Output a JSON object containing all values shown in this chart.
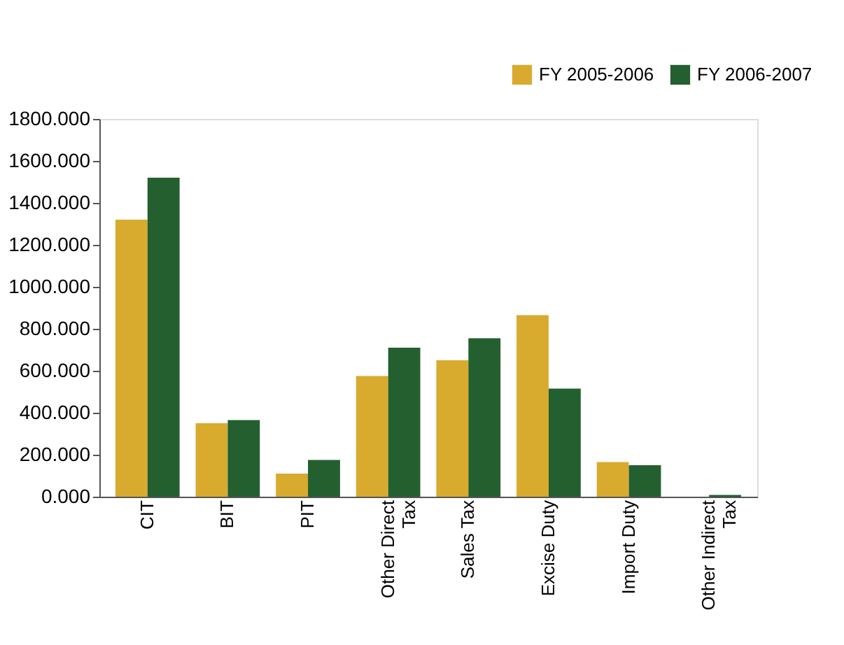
{
  "chart_data": {
    "type": "bar",
    "categories": [
      "CIT",
      "BIT",
      "PIT",
      "Other Direct Tax",
      "Sales Tax",
      "Excise Duty",
      "Import Duty",
      "Other Indirect Tax"
    ],
    "series": [
      {
        "name": "FY 2005-2006",
        "color": "#d8ab2e",
        "values": [
          1320,
          350,
          110,
          575,
          650,
          865,
          165,
          0
        ]
      },
      {
        "name": "FY 2006-2007",
        "color": "#245f30",
        "values": [
          1520,
          365,
          175,
          710,
          755,
          515,
          150,
          8
        ]
      }
    ],
    "ylim": [
      0,
      1800
    ],
    "yticks": [
      {
        "value": 0,
        "label": "0.000"
      },
      {
        "value": 200,
        "label": "200.000"
      },
      {
        "value": 400,
        "label": "400.000"
      },
      {
        "value": 600,
        "label": "600.000"
      },
      {
        "value": 800,
        "label": "800.000"
      },
      {
        "value": 1000,
        "label": "1000.000"
      },
      {
        "value": 1200,
        "label": "1200.000"
      },
      {
        "value": 1400,
        "label": "1400.000"
      },
      {
        "value": 1600,
        "label": "1600.000"
      },
      {
        "value": 1800,
        "label": "1800.000"
      }
    ],
    "grid": false,
    "legend": "top right"
  }
}
